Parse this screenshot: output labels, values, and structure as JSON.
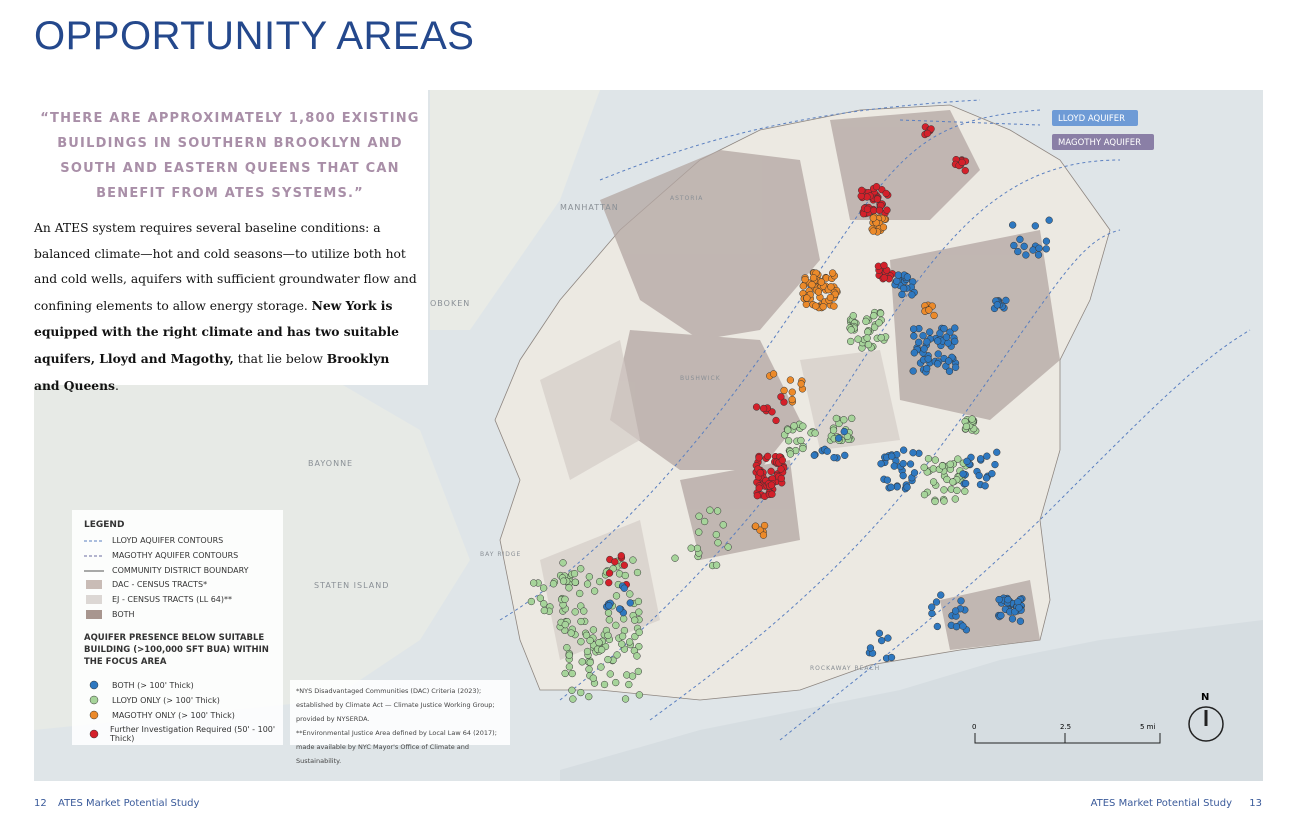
{
  "header": {
    "title": "OPPORTUNITY AREAS"
  },
  "quote": "“THERE ARE APPROXIMATELY 1,800 EXISTING BUILDINGS IN SOUTHERN BROOKLYN AND SOUTH AND EASTERN QUEENS THAT CAN BENEFIT FROM ATES SYSTEMS.”",
  "body": [
    "An ATES system requires several baseline conditions: a balanced climate—hot and cold seasons—to utilize both hot and cold wells, aquifers with sufficient groundwater flow and confining elements to allow energy storage. ",
    "New York is equipped with the right climate and has two suitable aquifers, Lloyd and Magothy,",
    " that lie below ",
    "Brooklyn and Queens",
    "."
  ],
  "map": {
    "places": [
      "MANHATTAN",
      "OBOKEN",
      "BAYONNE",
      "STATEN ISLAND",
      "BAY RIDGE",
      "ROCKAWAY BEACH",
      "BUSHWICK",
      "ASTORIA"
    ],
    "callouts": [
      "LLOYD AQUIFER",
      "MAGOTHY AQUIFER"
    ],
    "scale": [
      "0",
      "2.5",
      "5 mi"
    ],
    "north": "N"
  },
  "legend": {
    "title": "LEGEND",
    "lines": [
      "LLOYD AQUIFER CONTOURS",
      "MAGOTHY AQUIFER CONTOURS",
      "COMMUNITY DISTRICT BOUNDARY"
    ],
    "areas": [
      "DAC - CENSUS TRACTS*",
      "EJ - CENSUS TRACTS (LL 64)**",
      "BOTH"
    ],
    "subtitle": "AQUIFER PRESENCE BELOW SUITABLE BUILDING (>100,000 SFT BUA) WITHIN THE FOCUS AREA",
    "dots": [
      "BOTH (> 100' Thick)",
      "LLOYD ONLY (> 100' Thick)",
      "MAGOTHY ONLY (> 100' Thick)",
      "Further Investigation Required (50' - 100' Thick)"
    ]
  },
  "footnotes": [
    "*NYS Disadvantaged Communities (DAC) Criteria (2023); established by Climate Act — Climate Justice Working Group; provided by NYSERDA.",
    "**Environmental Justice Area defined by Local Law 64 (2017); made available by NYC Mayor's Office of Climate and Sustainability."
  ],
  "footer": {
    "left_page": "12",
    "left_title": "ATES Market Potential Study",
    "right_title": "ATES Market Potential Study",
    "right_page": "13"
  }
}
